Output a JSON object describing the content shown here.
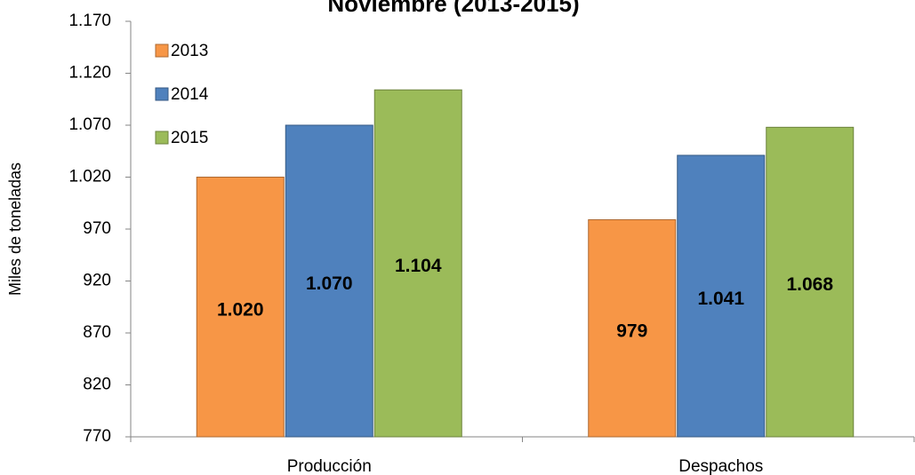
{
  "chart_data": {
    "type": "bar",
    "title": "Noviembre  (2013-2015)",
    "y_label": "Miles de toneladas",
    "categories": [
      "Producción",
      "Despachos"
    ],
    "series": [
      {
        "name": "2013",
        "color": "#f79646",
        "values": [
          1020,
          979
        ],
        "value_labels": [
          "1.020",
          "979"
        ]
      },
      {
        "name": "2014",
        "color": "#4f81bd",
        "values": [
          1070,
          1041
        ],
        "value_labels": [
          "1.070",
          "1.041"
        ]
      },
      {
        "name": "2015",
        "color": "#9bbb59",
        "values": [
          1104,
          1068
        ],
        "value_labels": [
          "1.104",
          "1.068"
        ]
      }
    ],
    "ylim": [
      770,
      1170
    ],
    "yticks": [
      770,
      {
        "value": 820,
        "label": "820"
      },
      {
        "value": 870,
        "label": "870"
      },
      {
        "value": 920,
        "label": "920"
      },
      {
        "value": 970,
        "label": "970"
      },
      {
        "value": 1020,
        "label": "1.020"
      },
      {
        "value": 1070,
        "label": "1.070"
      },
      {
        "value": 1120,
        "label": "1.120"
      },
      {
        "value": 1170,
        "label": "1.170"
      }
    ],
    "legend": "top-left",
    "grid": false
  }
}
